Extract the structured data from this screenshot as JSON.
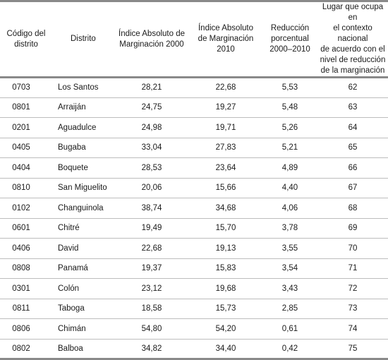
{
  "table": {
    "headers": [
      "Código del distrito",
      "Distrito",
      "Índice Absoluto de Marginación 2000",
      "Índice Absoluto de Marginación 2010",
      "Reducción porcentual 2000–2010",
      "Lugar que ocupa en el contexto nacional de acuerdo con el nivel de reducción de la marginación"
    ],
    "header_lines": [
      [
        "Código del",
        "distrito"
      ],
      [
        "Distrito"
      ],
      [
        "Índice Absoluto de",
        "Marginación 2000"
      ],
      [
        "Índice Absoluto",
        "de Marginación",
        "2010"
      ],
      [
        "Reducción",
        "porcentual",
        "2000–2010"
      ],
      [
        "Lugar que ocupa en",
        "el contexto nacional",
        "de acuerdo con el",
        "nivel de reducción",
        "de la marginación"
      ]
    ],
    "rows": [
      [
        "0703",
        "Los Santos",
        "28,21",
        "22,68",
        "5,53",
        "62"
      ],
      [
        "0801",
        "Arraiján",
        "24,75",
        "19,27",
        "5,48",
        "63"
      ],
      [
        "0201",
        "Aguadulce",
        "24,98",
        "19,71",
        "5,26",
        "64"
      ],
      [
        "0405",
        "Bugaba",
        "33,04",
        "27,83",
        "5,21",
        "65"
      ],
      [
        "0404",
        "Boquete",
        "28,53",
        "23,64",
        "4,89",
        "66"
      ],
      [
        "0810",
        "San Miguelito",
        "20,06",
        "15,66",
        "4,40",
        "67"
      ],
      [
        "0102",
        "Changuinola",
        "38,74",
        "34,68",
        "4,06",
        "68"
      ],
      [
        "0601",
        "Chitré",
        "19,49",
        "15,70",
        "3,78",
        "69"
      ],
      [
        "0406",
        "David",
        "22,68",
        "19,13",
        "3,55",
        "70"
      ],
      [
        "0808",
        "Panamá",
        "19,37",
        "15,83",
        "3,54",
        "71"
      ],
      [
        "0301",
        "Colón",
        "23,12",
        "19,68",
        "3,43",
        "72"
      ],
      [
        "0811",
        "Taboga",
        "18,58",
        "15,73",
        "2,85",
        "73"
      ],
      [
        "0806",
        "Chimán",
        "54,80",
        "54,20",
        "0,61",
        "74"
      ],
      [
        "0802",
        "Balboa",
        "34,82",
        "34,40",
        "0,42",
        "75"
      ]
    ]
  },
  "colors": {
    "rule_heavy": "#8a8a8a",
    "rule_light": "#bdbdbd",
    "text": "#1a1a1a"
  }
}
